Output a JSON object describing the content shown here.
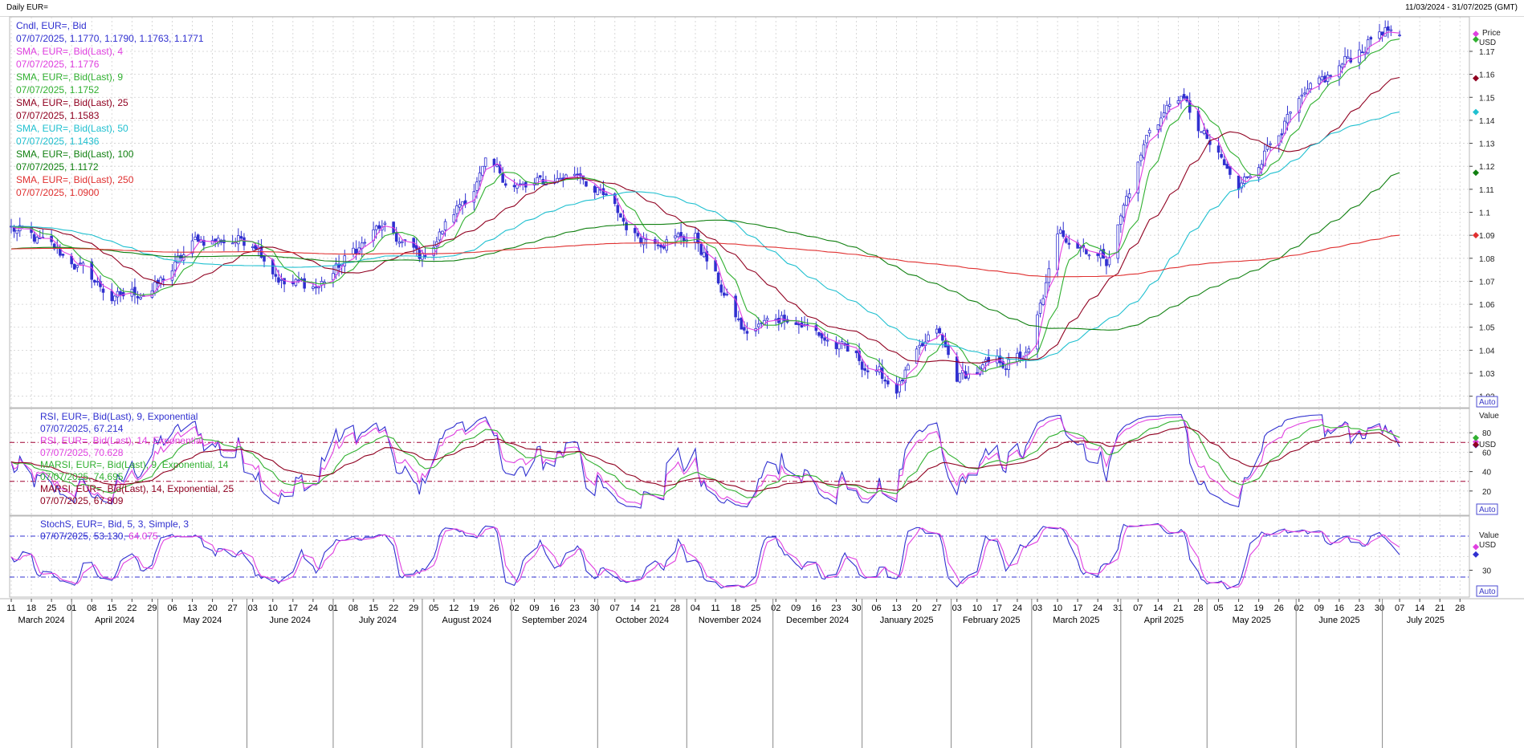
{
  "header": {
    "title": "Daily EUR=",
    "range": "11/03/2024 - 31/07/2025 (GMT)"
  },
  "colors": {
    "candle": "#3030d0",
    "sma4": "#e040e0",
    "sma9": "#30b030",
    "sma25": "#900020",
    "sma50": "#20c0d0",
    "sma100": "#108010",
    "sma250": "#e03030",
    "rsi9": "#3030d0",
    "rsi14": "#e040e0",
    "marsi9": "#30b030",
    "marsi14": "#900020",
    "stoch_k": "#3030d0",
    "stoch_d": "#e040e0",
    "grid": "#cfcfcf",
    "level_line": "#a00030",
    "stoch_level": "#3030d0"
  },
  "price_legend": [
    {
      "label": "Cndl, EUR=, Bid",
      "value": "07/07/2025, 1.1770, 1.1790, 1.1763, 1.1771",
      "color": "#3030d0"
    },
    {
      "label": "SMA, EUR=, Bid(Last), 4",
      "value": "07/07/2025, 1.1776",
      "color": "#e040e0"
    },
    {
      "label": "SMA, EUR=, Bid(Last), 9",
      "value": "07/07/2025, 1.1752",
      "color": "#30b030"
    },
    {
      "label": "SMA, EUR=, Bid(Last), 25",
      "value": "07/07/2025, 1.1583",
      "color": "#900020"
    },
    {
      "label": "SMA, EUR=, Bid(Last), 50",
      "value": "07/07/2025, 1.1436",
      "color": "#20c0d0"
    },
    {
      "label": "SMA, EUR=, Bid(Last), 100",
      "value": "07/07/2025, 1.1172",
      "color": "#108010"
    },
    {
      "label": "SMA, EUR=, Bid(Last), 250",
      "value": "07/07/2025, 1.0900",
      "color": "#e03030"
    }
  ],
  "rsi_legend": [
    {
      "label": "RSI, EUR=, Bid(Last), 9, Exponential",
      "value": "07/07/2025, 67.214",
      "color": "#3030d0"
    },
    {
      "label": "RSI, EUR=, Bid(Last), 14, Exponential",
      "value": "07/07/2025, 70.628",
      "color": "#e040e0"
    },
    {
      "label": "MARSI, EUR=, Bid(Last), 9, Exponential, 14",
      "value": "07/07/2025, 74.695",
      "color": "#30b030"
    },
    {
      "label": "MARSI, EUR=, Bid(Last), 14, Exponential, 25",
      "value": "07/07/2025, 67.809",
      "color": "#900020"
    }
  ],
  "stoch_legend": {
    "label": "StochS, EUR=, Bid, 5, 3, Simple, 3",
    "value_prefix": "07/07/2025, 53.130, ",
    "value_suffix": "64.075"
  },
  "price_axis": {
    "title": "Price",
    "unit": "USD",
    "ticks": [
      "1.17",
      "1.16",
      "1.15",
      "1.14",
      "1.13",
      "1.12",
      "1.11",
      "1.1",
      "1.09",
      "1.08",
      "1.07",
      "1.06",
      "1.05",
      "1.04",
      "1.03",
      "1.02"
    ],
    "auto": "Auto"
  },
  "rsi_axis": {
    "title": "Value",
    "unit": "USD",
    "ticks": [
      "80",
      "60",
      "40",
      "20"
    ],
    "auto": "Auto"
  },
  "stoch_axis": {
    "title": "Value",
    "unit": "USD",
    "ticks": [
      "30"
    ],
    "auto": "Auto"
  },
  "x_day_ticks": [
    "11",
    "18",
    "25",
    "01",
    "08",
    "15",
    "22",
    "29",
    "06",
    "13",
    "20",
    "27",
    "03",
    "10",
    "17",
    "24",
    "01",
    "08",
    "15",
    "22",
    "29",
    "05",
    "12",
    "19",
    "26",
    "02",
    "09",
    "16",
    "23",
    "30",
    "07",
    "14",
    "21",
    "28",
    "04",
    "11",
    "18",
    "25",
    "02",
    "09",
    "16",
    "23",
    "30",
    "06",
    "13",
    "20",
    "27",
    "03",
    "10",
    "17",
    "24",
    "03",
    "10",
    "17",
    "24",
    "31",
    "07",
    "14",
    "21",
    "28",
    "05",
    "12",
    "19",
    "26",
    "02",
    "09",
    "16",
    "23",
    "30",
    "07",
    "14",
    "21",
    "28"
  ],
  "x_month_labels": [
    "March 2024",
    "April 2024",
    "May 2024",
    "June 2024",
    "July 2024",
    "August 2024",
    "September 2024",
    "October 2024",
    "November 2024",
    "December 2024",
    "January 2025",
    "February 2025",
    "March 2025",
    "April 2025",
    "May 2025",
    "June 2025",
    "July 2025"
  ],
  "chart_data": {
    "type": "line",
    "title": "Daily EUR=",
    "period": "11/03/2024 - 31/07/2025 (GMT)",
    "panes": [
      "price candles with SMA 4/9/25/50/100/250",
      "RSI 9/14 with MARSI",
      "Stochastic slow 5,3,3"
    ],
    "price_ylim": [
      1.015,
      1.185
    ],
    "rsi_ylim": [
      0,
      100
    ],
    "rsi_levels": [
      70,
      30
    ],
    "stoch_levels": [
      80,
      20
    ],
    "last_values": {
      "close": 1.1771,
      "sma4": 1.1776,
      "sma9": 1.1752,
      "sma25": 1.1583,
      "sma50": 1.1436,
      "sma100": 1.1172,
      "sma250": 1.09,
      "rsi9": 67.214,
      "rsi14": 70.628,
      "marsi9": 74.695,
      "marsi14": 67.809,
      "stoch_k": 53.13,
      "stoch_d": 64.075
    },
    "close_anchors": [
      {
        "date": "11/03/2024",
        "close": 1.093
      },
      {
        "date": "01/04/2024",
        "close": 1.079
      },
      {
        "date": "16/04/2024",
        "close": 1.062
      },
      {
        "date": "01/05/2024",
        "close": 1.068
      },
      {
        "date": "15/05/2024",
        "close": 1.088
      },
      {
        "date": "04/06/2024",
        "close": 1.088
      },
      {
        "date": "14/06/2024",
        "close": 1.069
      },
      {
        "date": "26/06/2024",
        "close": 1.068
      },
      {
        "date": "17/07/2024",
        "close": 1.093
      },
      {
        "date": "01/08/2024",
        "close": 1.08
      },
      {
        "date": "23/08/2024",
        "close": 1.119
      },
      {
        "date": "06/09/2024",
        "close": 1.11
      },
      {
        "date": "25/09/2024",
        "close": 1.118
      },
      {
        "date": "14/10/2024",
        "close": 1.09
      },
      {
        "date": "04/11/2024",
        "close": 1.089
      },
      {
        "date": "21/11/2024",
        "close": 1.047
      },
      {
        "date": "06/12/2024",
        "close": 1.056
      },
      {
        "date": "31/12/2024",
        "close": 1.035
      },
      {
        "date": "13/01/2025",
        "close": 1.024
      },
      {
        "date": "27/01/2025",
        "close": 1.048
      },
      {
        "date": "03/02/2025",
        "close": 1.028
      },
      {
        "date": "28/02/2025",
        "close": 1.038
      },
      {
        "date": "11/03/2025",
        "close": 1.092
      },
      {
        "date": "27/03/2025",
        "close": 1.08
      },
      {
        "date": "11/04/2025",
        "close": 1.136
      },
      {
        "date": "21/04/2025",
        "close": 1.151
      },
      {
        "date": "12/05/2025",
        "close": 1.109
      },
      {
        "date": "26/05/2025",
        "close": 1.137
      },
      {
        "date": "12/06/2025",
        "close": 1.158
      },
      {
        "date": "01/07/2025",
        "close": 1.18
      },
      {
        "date": "07/07/2025",
        "close": 1.1771
      }
    ]
  }
}
